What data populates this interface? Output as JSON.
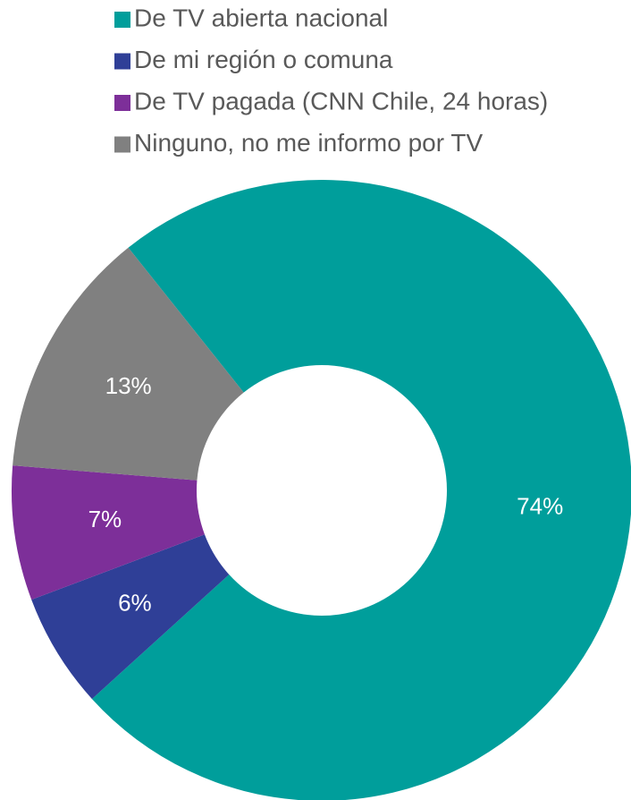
{
  "chart_data": {
    "type": "donut",
    "categories": [
      "De TV abierta nacional",
      "De mi región o comuna",
      "De TV pagada (CNN Chile, 24 horas)",
      "Ninguno, no me informo por TV"
    ],
    "values": [
      74,
      6,
      7,
      13
    ],
    "value_labels": [
      "74%",
      "6%",
      "7%",
      "13%"
    ],
    "colors": [
      "#009e9b",
      "#2f3f97",
      "#7d2f99",
      "#808080"
    ],
    "legend": "top"
  }
}
